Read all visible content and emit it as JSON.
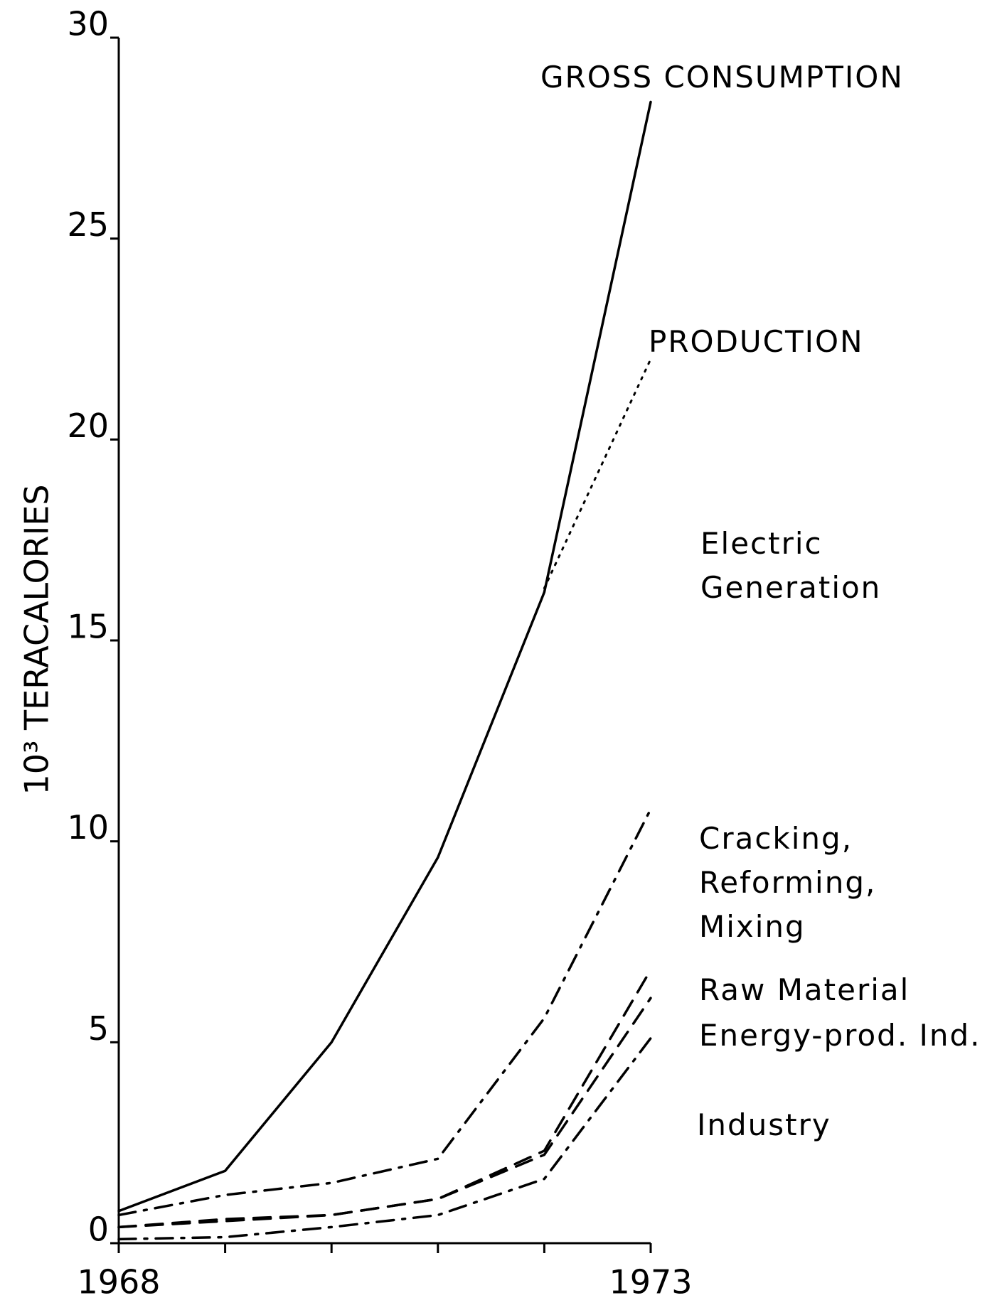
{
  "chart_data": {
    "type": "line",
    "ylabel": "10³ TERACALORIES",
    "x": [
      1968,
      1969,
      1970,
      1971,
      1972,
      1973
    ],
    "xlim": [
      1968,
      1973
    ],
    "xticks": [
      1968,
      1973
    ],
    "ylim": [
      0,
      30
    ],
    "yticks": [
      0,
      5,
      10,
      15,
      20,
      25,
      30
    ],
    "series": [
      {
        "name": "GROSS CONSUMPTION",
        "color": "#000000",
        "dash": "solid",
        "values": [
          0.8,
          1.8,
          5.0,
          9.6,
          16.2,
          28.4
        ]
      },
      {
        "name": "PRODUCTION",
        "color": "#000000",
        "dash": "dotted",
        "values": [
          null,
          null,
          null,
          null,
          16.3,
          22.0
        ]
      },
      {
        "name": "Cracking, Reforming, Mixing",
        "color": "#000000",
        "dash": "dashdot",
        "values": [
          0.7,
          1.2,
          1.5,
          2.1,
          5.6,
          10.8
        ]
      },
      {
        "name": "Raw Material",
        "color": "#000000",
        "dash": "dashed",
        "values": [
          0.4,
          0.6,
          0.7,
          1.1,
          2.3,
          6.8
        ]
      },
      {
        "name": "Energy-prod. Ind.",
        "color": "#000000",
        "dash": "dashed",
        "values": [
          0.4,
          0.55,
          0.7,
          1.1,
          2.2,
          6.1
        ]
      },
      {
        "name": "Industry",
        "color": "#000000",
        "dash": "dashdot",
        "values": [
          0.1,
          0.15,
          0.4,
          0.7,
          1.6,
          5.1
        ]
      }
    ],
    "annotations": [
      "Electric Generation"
    ]
  }
}
